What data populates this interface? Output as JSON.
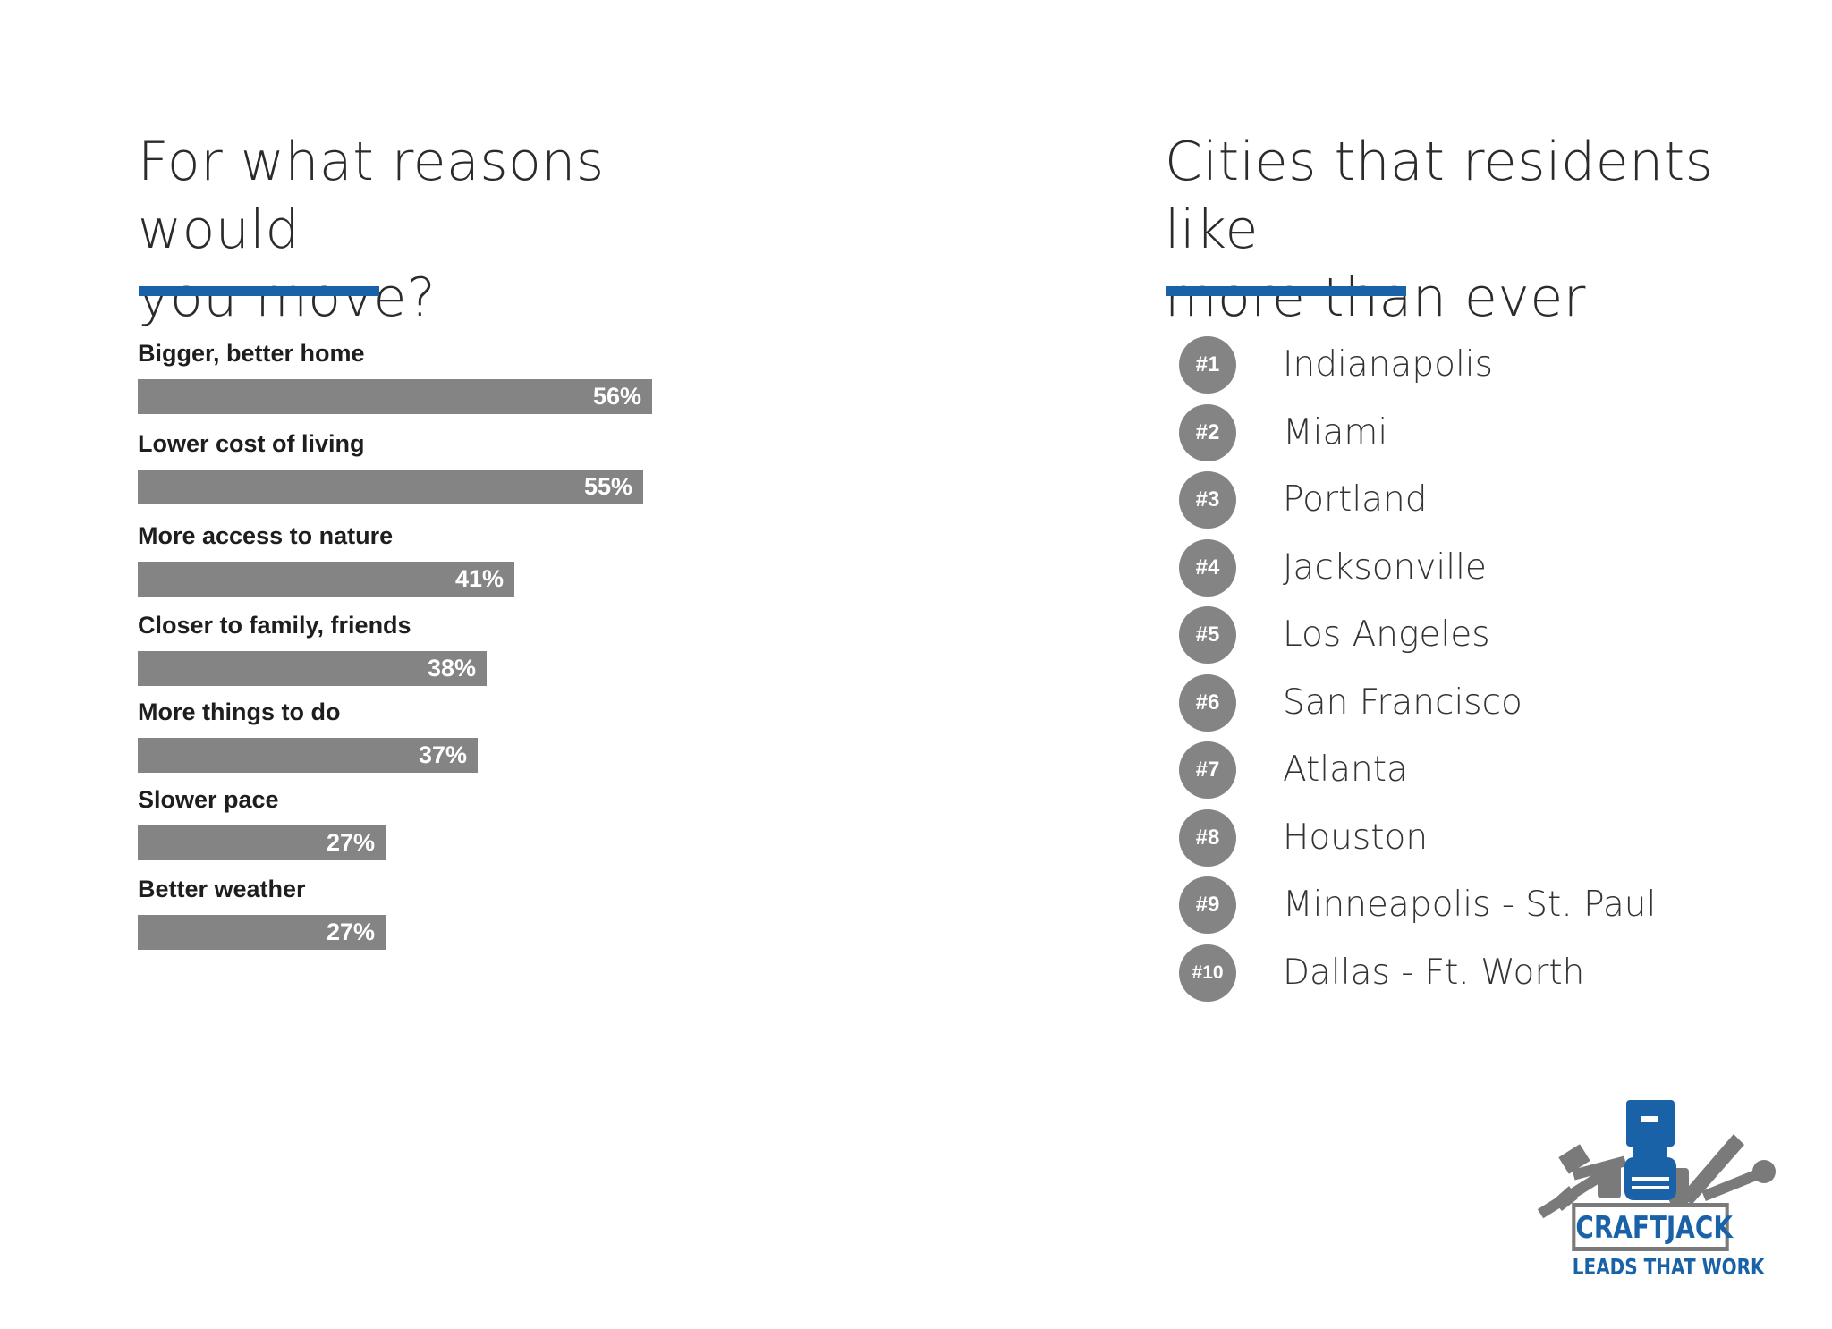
{
  "colors": {
    "accent": "#1a62a8",
    "bar": "#848484",
    "badge": "#848484",
    "logo_blue": "#1a62a8",
    "logo_gray": "#7a7a7a"
  },
  "left": {
    "title_lines": [
      "For what reasons would",
      "you move?"
    ]
  },
  "right": {
    "title_lines": [
      "Cities that residents like",
      "more than ever"
    ],
    "cities": [
      {
        "rank": "#1",
        "name": "Indianapolis"
      },
      {
        "rank": "#2",
        "name": "Miami"
      },
      {
        "rank": "#3",
        "name": "Portland"
      },
      {
        "rank": "#4",
        "name": "Jacksonville"
      },
      {
        "rank": "#5",
        "name": "Los Angeles"
      },
      {
        "rank": "#6",
        "name": "San Francisco"
      },
      {
        "rank": "#7",
        "name": "Atlanta"
      },
      {
        "rank": "#8",
        "name": "Houston"
      },
      {
        "rank": "#9",
        "name": "Minneapolis - St. Paul"
      },
      {
        "rank": "#10",
        "name": "Dallas - Ft. Worth"
      }
    ]
  },
  "chart_data": {
    "type": "bar",
    "orientation": "horizontal",
    "title": "For what reasons would you move?",
    "categories": [
      "Bigger, better home",
      "Lower cost of living",
      "More access to nature",
      "Closer to family, friends",
      "More things to do",
      "Slower pace",
      "Better weather"
    ],
    "values": [
      56,
      55,
      41,
      38,
      37,
      27,
      27
    ],
    "value_labels": [
      "56%",
      "55%",
      "41%",
      "38%",
      "37%",
      "27%",
      "27%"
    ],
    "unit": "%",
    "xlim": [
      0,
      75
    ],
    "grid": false,
    "legend": "none"
  },
  "logo": {
    "brand": "CRAFTJACK",
    "tagline": "LEADS THAT WORK",
    "icon": "tools-and-hand-icon"
  }
}
